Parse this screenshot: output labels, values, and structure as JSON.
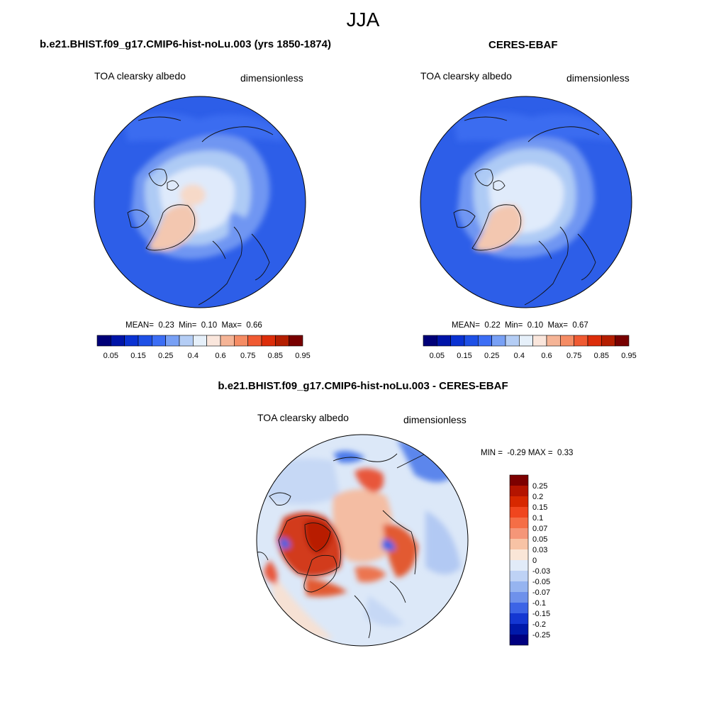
{
  "figure": {
    "season": "JJA"
  },
  "panels": [
    {
      "title": "b.e21.BHIST.f09_g17.CMIP6-hist-noLu.003 (yrs 1850-1874)",
      "variable": "TOA clearsky albedo",
      "units": "dimensionless",
      "stats": {
        "mean_label": "MEAN=",
        "mean": "0.23",
        "min_label": "Min=",
        "min": "0.10",
        "max_label": "Max=",
        "max": "0.66"
      }
    },
    {
      "title": "CERES-EBAF",
      "variable": "TOA clearsky albedo",
      "units": "dimensionless",
      "stats": {
        "mean_label": "MEAN=",
        "mean": "0.22",
        "min_label": "Min=",
        "min": "0.10",
        "max_label": "Max=",
        "max": "0.67"
      }
    },
    {
      "title": "b.e21.BHIST.f09_g17.CMIP6-hist-noLu.003 - CERES-EBAF",
      "variable": "TOA clearsky albedo",
      "units": "dimensionless",
      "stats": {
        "min_label": "MIN =",
        "min": "-0.29",
        "max_label": "MAX =",
        "max": "0.33"
      }
    }
  ],
  "colorbars": {
    "absolute": {
      "labels": [
        "0.05",
        "0.15",
        "0.25",
        "0.4",
        "0.6",
        "0.75",
        "0.85",
        "0.95"
      ],
      "colors": [
        "#000078",
        "#0014a8",
        "#0a32d2",
        "#1e50e6",
        "#3c6ef5",
        "#78a0f5",
        "#b4cdf5",
        "#e6f0fa",
        "#fae6dc",
        "#f5b496",
        "#f58c64",
        "#f05a32",
        "#dc2d0a",
        "#b41e00",
        "#780000"
      ]
    },
    "difference": {
      "labels": [
        "0.25",
        "0.2",
        "0.15",
        "0.1",
        "0.07",
        "0.05",
        "0.03",
        "0",
        "-0.03",
        "-0.05",
        "-0.07",
        "-0.1",
        "-0.15",
        "-0.2",
        "-0.25"
      ],
      "colors": [
        "#7d0000",
        "#b41400",
        "#d72800",
        "#f0461e",
        "#f56e46",
        "#f59678",
        "#f8c3a5",
        "#fae6d7",
        "#e1ebf8",
        "#bed2f5",
        "#96b4f0",
        "#6e91eb",
        "#3c64e6",
        "#1437d2",
        "#0019aa",
        "#000080"
      ]
    }
  }
}
